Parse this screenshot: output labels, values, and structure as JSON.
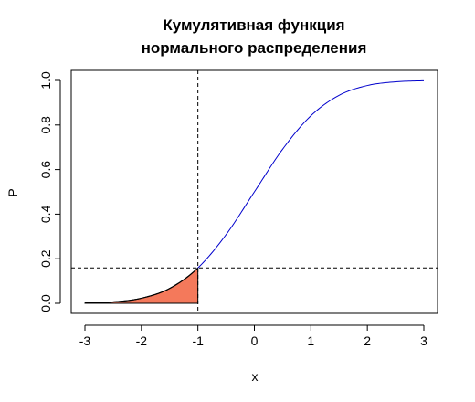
{
  "chart_data": {
    "type": "line",
    "title_line1": "Кумулятивная функция",
    "title_line2": "нормального распределения",
    "xlabel": "x",
    "ylabel": "P",
    "xlim": [
      -3,
      3
    ],
    "ylim": [
      0,
      1
    ],
    "x_ticks": [
      "-3",
      "-2",
      "-1",
      "0",
      "1",
      "2",
      "3"
    ],
    "y_ticks": [
      "0.0",
      "0.2",
      "0.4",
      "0.6",
      "0.8",
      "1.0"
    ],
    "series": [
      {
        "x": [
          -3,
          -2.5,
          -2,
          -1.5,
          -1,
          -0.5,
          0,
          0.5,
          1,
          1.5,
          2,
          2.5,
          3
        ],
        "values": [
          0.0013,
          0.0062,
          0.0228,
          0.0668,
          0.1587,
          0.3085,
          0.5,
          0.6915,
          0.8413,
          0.9332,
          0.9772,
          0.9938,
          0.9987
        ],
        "color": "#0000cc"
      }
    ],
    "vline_x": -1,
    "hline_y": 0.1587,
    "shaded_region": {
      "x_from": -3,
      "x_to": -1,
      "color": "#f4795b"
    }
  }
}
